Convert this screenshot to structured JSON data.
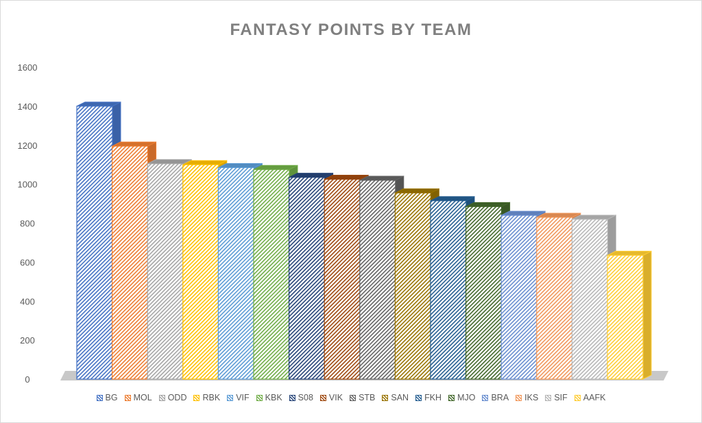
{
  "chart_data": {
    "type": "bar",
    "title": "FANTASY POINTS BY TEAM",
    "xlabel": "",
    "ylabel": "",
    "ylim": [
      0,
      1600
    ],
    "yticks": [
      0,
      200,
      400,
      600,
      800,
      1000,
      1200,
      1400,
      1600
    ],
    "grid": false,
    "legend_position": "bottom",
    "categories": [
      "BG",
      "MOL",
      "ODD",
      "RBK",
      "VIF",
      "KBK",
      "S08",
      "VIK",
      "STB",
      "SAN",
      "FKH",
      "MJO",
      "BRA",
      "IKS",
      "SIF",
      "AAFK"
    ],
    "values": [
      1400,
      1195,
      1105,
      1100,
      1085,
      1075,
      1035,
      1025,
      1020,
      955,
      915,
      885,
      840,
      830,
      820,
      635
    ],
    "colors": [
      "#4472c4",
      "#ed7d31",
      "#a5a5a5",
      "#ffc000",
      "#5b9bd5",
      "#70ad47",
      "#264478",
      "#9e480e",
      "#636363",
      "#997300",
      "#255e91",
      "#43682b",
      "#698ed0",
      "#f1975a",
      "#b7b7b7",
      "#ffcd33"
    ]
  }
}
